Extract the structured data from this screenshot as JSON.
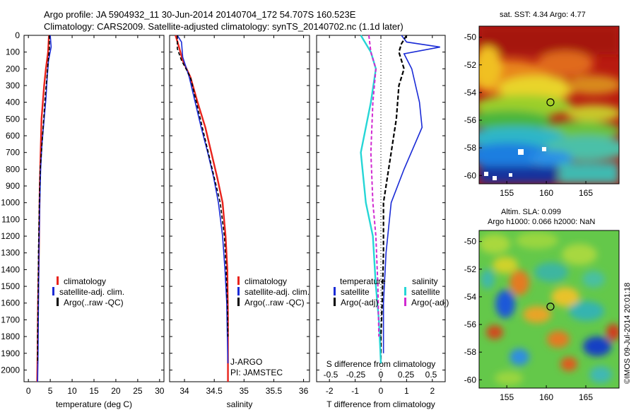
{
  "titles": {
    "line1": "Argo profile: JA 5904932_11 30-Jun-2014 20140704_172 54.707S 160.523E",
    "line2": "Climatology: CARS2009. Satellite-adjusted climatology: synTS_20140702.nc (1.1d later)"
  },
  "colors": {
    "climatology": "#e8231c",
    "satellite": "#1a2bd6",
    "argo": "#000000",
    "satellite_salinity": "#25d6d6",
    "argo_salinity": "#d12ad1"
  },
  "depth_axis": {
    "ticks": [
      "0",
      "100",
      "200",
      "300",
      "400",
      "500",
      "600",
      "700",
      "800",
      "900",
      "1000",
      "1100",
      "1200",
      "1300",
      "1400",
      "1500",
      "1600",
      "1700",
      "1800",
      "1900",
      "2000"
    ],
    "range": [
      0,
      2070
    ]
  },
  "legend": {
    "climatology": "climatology",
    "satellite": "satellite-adj. clim.",
    "argo": "Argo(..raw -QC)"
  },
  "legend_diff": {
    "temperature": "temperature",
    "salinity": "salinity",
    "satellite": "satellite",
    "argo": "Argo(-adj)"
  },
  "annotations": {
    "jargo": "J-ARGO",
    "pi": "PI: JAMSTEC"
  },
  "maps": {
    "sst_title": "sat. SST: 4.34 Argo: 4.77",
    "sla_title1": "Altim. SLA: 0.099",
    "sla_title2": "Argo h1000: 0.066 h2000: NaN",
    "lat_ticks": [
      "-50",
      "-52",
      "-54",
      "-56",
      "-58",
      "-60"
    ],
    "lon_ticks": [
      "155",
      "160",
      "165"
    ],
    "stamp": "©IMOS 09-Jul-2014 20:01:18",
    "argo_lon": 160.523,
    "argo_lat": -54.707
  },
  "chart_data": [
    {
      "type": "line",
      "xlabel": "temperature (deg C)",
      "ylabel": "",
      "xlim": [
        -1,
        31
      ],
      "ylim": [
        2070,
        0
      ],
      "xticks": [
        "0",
        "5",
        "10",
        "15",
        "20",
        "25",
        "30"
      ],
      "series": [
        {
          "name": "climatology",
          "x": [
            4.7,
            4.5,
            4.0,
            3.6,
            3.3,
            3.0,
            2.8,
            2.6,
            2.5,
            2.4,
            2.2,
            2.1,
            2.0
          ],
          "y": [
            0,
            100,
            200,
            300,
            400,
            500,
            700,
            900,
            1100,
            1300,
            1600,
            1900,
            2070
          ]
        },
        {
          "name": "satellite-adj. clim.",
          "x": [
            5.0,
            5.2,
            4.6,
            4.3,
            4.0,
            3.6,
            3.1,
            2.8,
            2.6,
            2.4,
            2.3,
            2.2,
            2.1
          ],
          "y": [
            0,
            70,
            150,
            250,
            380,
            500,
            650,
            800,
            1000,
            1300,
            1600,
            1900,
            2070
          ]
        },
        {
          "name": "Argo(..raw -QC)",
          "x": [
            4.8,
            4.8,
            4.5,
            4.2,
            3.8,
            3.5,
            3.1,
            2.7,
            2.5,
            2.3,
            2.2,
            2.1,
            2.1
          ],
          "y": [
            0,
            80,
            160,
            260,
            380,
            500,
            650,
            800,
            1000,
            1300,
            1600,
            1800,
            1960
          ]
        }
      ]
    },
    {
      "type": "line",
      "xlabel": "salinity",
      "ylabel": "",
      "xlim": [
        33.75,
        36.1
      ],
      "ylim": [
        2070,
        0
      ],
      "xticks": [
        "34",
        "34.5",
        "35",
        "35.5",
        "36"
      ],
      "series": [
        {
          "name": "climatology",
          "x": [
            33.85,
            33.9,
            33.97,
            34.1,
            34.22,
            34.35,
            34.45,
            34.55,
            34.64,
            34.69,
            34.72,
            34.73,
            34.73
          ],
          "y": [
            0,
            60,
            150,
            250,
            400,
            550,
            700,
            850,
            1000,
            1200,
            1400,
            1700,
            2070
          ]
        },
        {
          "name": "satellite-adj. clim.",
          "x": [
            33.88,
            33.95,
            33.97,
            34.08,
            34.18,
            34.28,
            34.39,
            34.49,
            34.57,
            34.64,
            34.68,
            34.71,
            34.72,
            34.73
          ],
          "y": [
            0,
            40,
            130,
            250,
            400,
            550,
            700,
            850,
            1000,
            1200,
            1400,
            1600,
            1800,
            1960
          ]
        },
        {
          "name": "Argo(..raw -QC)",
          "x": [
            33.88,
            33.88,
            33.95,
            34.1,
            34.2,
            34.3,
            34.4,
            34.5,
            34.6,
            34.67,
            34.7,
            34.72,
            34.73
          ],
          "y": [
            0,
            80,
            150,
            250,
            400,
            550,
            700,
            850,
            1000,
            1200,
            1400,
            1600,
            1800
          ]
        }
      ]
    },
    {
      "type": "line",
      "xlabel": "T difference from climatology",
      "xlabel2": "S difference from climatology",
      "ylabel": "",
      "xlim": [
        -2.5,
        2.5
      ],
      "ylim": [
        2070,
        0
      ],
      "xticks": [
        "-2",
        "-1",
        "0",
        "1",
        "2"
      ],
      "xticks2": [
        "-0.5",
        "-0.25",
        "0",
        "0.25",
        "0.5"
      ],
      "series": [
        {
          "name": "temperature satellite",
          "x": [
            0.8,
            1.0,
            2.3,
            0.9,
            1.2,
            1.5,
            1.6,
            0.9,
            0.4,
            0.2,
            0.1,
            0.1
          ],
          "y": [
            0,
            40,
            70,
            110,
            200,
            400,
            550,
            800,
            1000,
            1300,
            1600,
            1900
          ]
        },
        {
          "name": "temperature Argo(-adj)",
          "x": [
            1.0,
            0.8,
            0.7,
            0.9,
            0.7,
            0.6,
            0.3,
            0.1,
            0.1,
            0.05,
            0.0,
            0.0
          ],
          "y": [
            0,
            50,
            100,
            200,
            300,
            500,
            800,
            1000,
            1300,
            1600,
            1800,
            1960
          ]
        },
        {
          "name": "salinity satellite",
          "x": [
            -0.2,
            -0.1,
            -0.05,
            -0.1,
            -0.2,
            -0.15,
            -0.08,
            -0.05,
            -0.02,
            0.0
          ],
          "y": [
            0,
            100,
            200,
            400,
            700,
            1000,
            1200,
            1500,
            1700,
            1960
          ]
        },
        {
          "name": "salinity Argo(-adj)",
          "x": [
            -0.12,
            -0.1,
            -0.05,
            -0.08,
            -0.1,
            -0.08,
            -0.05,
            -0.03,
            -0.02
          ],
          "y": [
            0,
            100,
            200,
            400,
            700,
            1000,
            1200,
            1500,
            1800
          ]
        }
      ]
    }
  ]
}
